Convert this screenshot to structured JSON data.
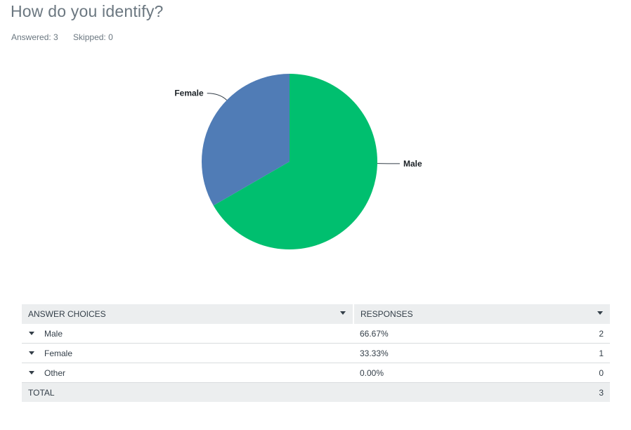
{
  "question": {
    "title": "How do you identify?",
    "answered_label": "Answered: 3",
    "skipped_label": "Skipped: 0"
  },
  "colors": {
    "male": "#00bf6f",
    "female": "#507cb6",
    "leader": "#333e48"
  },
  "chart_data": {
    "type": "pie",
    "title": "",
    "slices": [
      {
        "label": "Male",
        "value": 66.67,
        "color": "#00bf6f"
      },
      {
        "label": "Female",
        "value": 33.33,
        "color": "#507cb6"
      }
    ]
  },
  "table": {
    "headers": {
      "choices": "ANSWER CHOICES",
      "responses": "RESPONSES"
    },
    "rows": [
      {
        "choice": "Male",
        "percent": "66.67%",
        "count": "2"
      },
      {
        "choice": "Female",
        "percent": "33.33%",
        "count": "1"
      },
      {
        "choice": "Other",
        "percent": "0.00%",
        "count": "0"
      }
    ],
    "total": {
      "label": "TOTAL",
      "count": "3"
    }
  }
}
